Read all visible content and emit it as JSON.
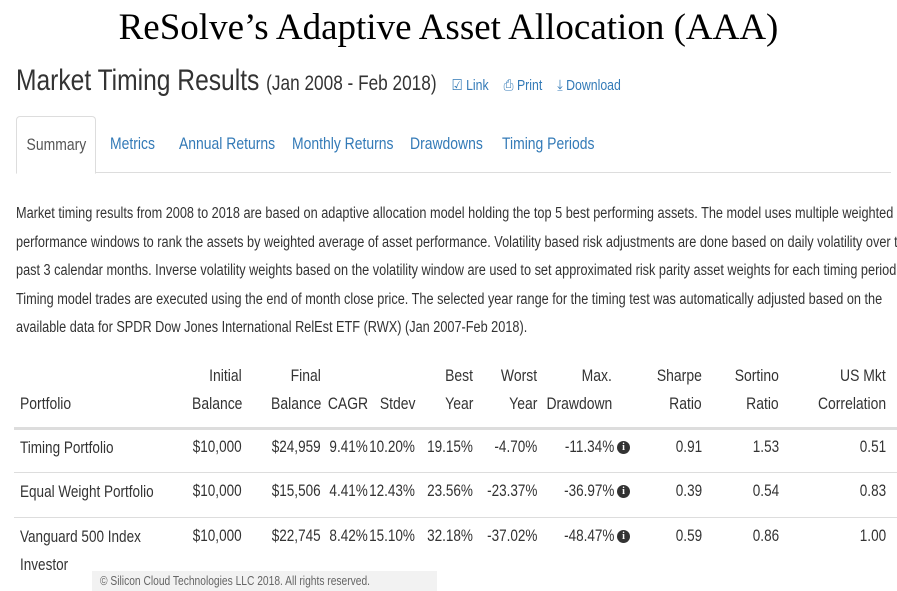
{
  "title": "ReSolve’s Adaptive Asset Allocation (AAA)",
  "heading": {
    "main": "Market Timing Results",
    "range": "(Jan 2008 - Feb 2018)",
    "links": [
      {
        "icon": "external-link-icon",
        "glyph": "☑",
        "label": "Link"
      },
      {
        "icon": "print-icon",
        "glyph": "⎙",
        "label": "Print"
      },
      {
        "icon": "download-icon",
        "glyph": "⤓",
        "label": "Download"
      }
    ]
  },
  "tabs": [
    {
      "label": "Summary",
      "active": true
    },
    {
      "label": "Metrics"
    },
    {
      "label": "Annual Returns"
    },
    {
      "label": "Monthly Returns"
    },
    {
      "label": "Drawdowns"
    },
    {
      "label": "Timing Periods"
    }
  ],
  "description": [
    "Market timing results from 2008 to 2018 are based on adaptive allocation model holding the top 5 best performing assets. The model uses multiple weighted",
    "performance windows to rank the assets by weighted average of asset performance. Volatility based risk adjustments are done based on daily volatility over the",
    "past 3 calendar months. Inverse volatility weights based on the volatility window are used to set approximated risk parity asset weights for each timing period.",
    "Timing model trades are executed using the end of month close price. The selected year range for the timing test was automatically adjusted based on the",
    "available data for SPDR Dow Jones International RelEst ETF (RWX) (Jan 2007-Feb 2018)."
  ],
  "table": {
    "headers": [
      [
        "",
        "Portfolio"
      ],
      [
        "Initial",
        "Balance"
      ],
      [
        "Final",
        "Balance"
      ],
      [
        "",
        "CAGR"
      ],
      [
        "",
        "Stdev"
      ],
      [
        "Best",
        "Year"
      ],
      [
        "Worst",
        "Year"
      ],
      [
        "Max.",
        "Drawdown"
      ],
      [
        "Sharpe",
        "Ratio"
      ],
      [
        "Sortino",
        "Ratio"
      ],
      [
        "US Mkt",
        "Correlation"
      ]
    ],
    "rows": [
      [
        "Timing Portfolio",
        "$10,000",
        "$24,959",
        "9.41%",
        "10.20%",
        "19.15%",
        "-4.70%",
        "-11.34%",
        "0.91",
        "1.53",
        "0.51"
      ],
      [
        "Equal Weight Portfolio",
        "$10,000",
        "$15,506",
        "4.41%",
        "12.43%",
        "23.56%",
        "-23.37%",
        "-36.97%",
        "0.39",
        "0.54",
        "0.83"
      ],
      [
        "Vanguard 500 Index Investor",
        "$10,000",
        "$22,745",
        "8.42%",
        "15.10%",
        "32.18%",
        "-37.02%",
        "-48.47%",
        "0.59",
        "0.86",
        "1.00"
      ]
    ],
    "info_glyph": "i"
  },
  "footer": "© Silicon Cloud Technologies LLC 2018. All rights reserved."
}
